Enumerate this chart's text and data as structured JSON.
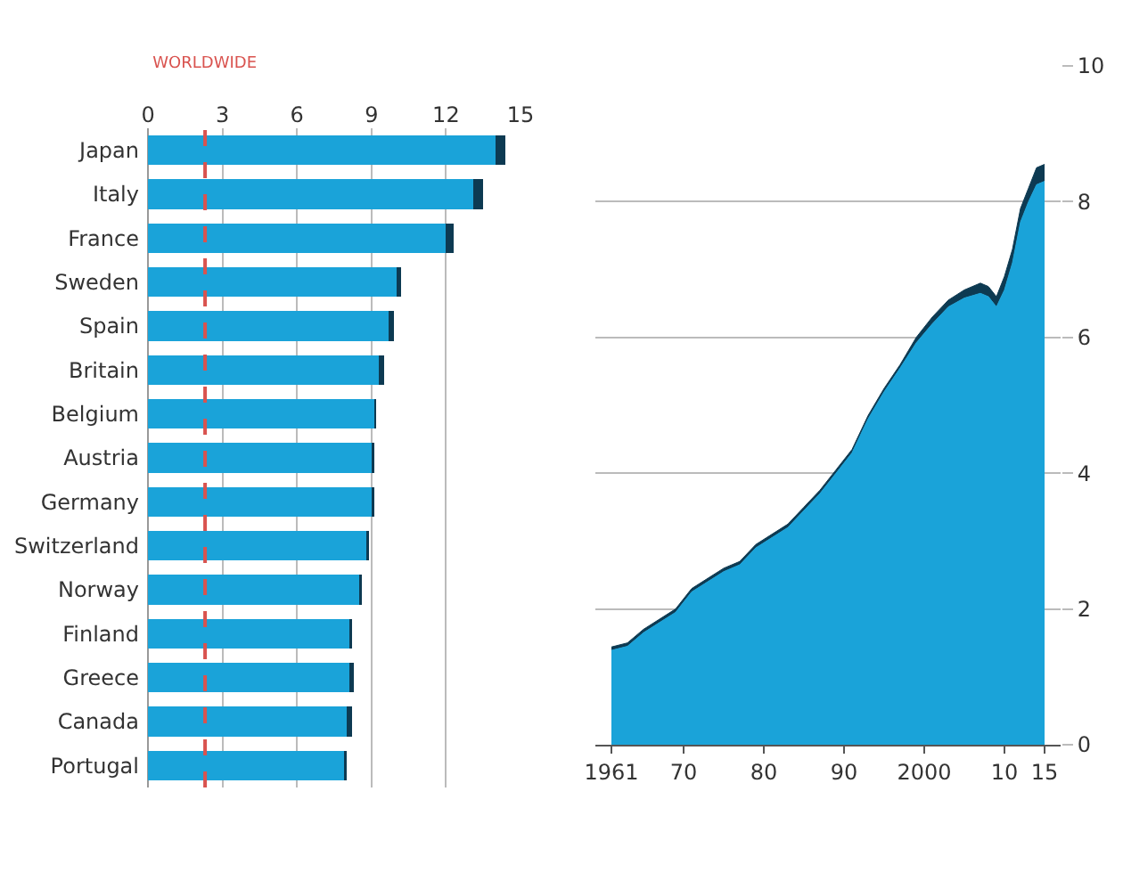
{
  "chart_data": [
    {
      "type": "bar",
      "orientation": "horizontal",
      "stacked": true,
      "grid": "x",
      "categories": [
        "Japan",
        "Italy",
        "France",
        "Sweden",
        "Spain",
        "Britain",
        "Belgium",
        "Austria",
        "Germany",
        "Switzerland",
        "Norway",
        "Finland",
        "Greece",
        "Canada",
        "Portugal"
      ],
      "series": [
        {
          "color": "#1aa3d9",
          "values": [
            14.0,
            13.1,
            12.0,
            10.0,
            9.7,
            9.3,
            9.1,
            9.0,
            9.0,
            8.8,
            8.5,
            8.1,
            8.1,
            8.0,
            7.9
          ]
        },
        {
          "color": "#0d3a52",
          "values": [
            0.4,
            0.4,
            0.3,
            0.2,
            0.2,
            0.2,
            0.1,
            0.1,
            0.1,
            0.1,
            0.1,
            0.1,
            0.2,
            0.2,
            0.1
          ]
        }
      ],
      "xlim": [
        0,
        15
      ],
      "xticks": [
        0,
        3,
        6,
        9,
        12,
        15
      ],
      "ref_lines": [
        {
          "axis": "x",
          "value": 2.3,
          "label": "WORLDWIDE",
          "color": "#d9534f",
          "line_style": "dashed"
        }
      ]
    },
    {
      "type": "area",
      "stacked": true,
      "grid": "y",
      "x": [
        1961,
        1963,
        1965,
        1967,
        1969,
        1971,
        1973,
        1975,
        1977,
        1979,
        1981,
        1983,
        1985,
        1987,
        1989,
        1991,
        1993,
        1995,
        1997,
        1999,
        2001,
        2003,
        2005,
        2007,
        2008,
        2009,
        2010,
        2011,
        2012,
        2013,
        2014,
        2015
      ],
      "series": [
        {
          "color": "#1aa3d9",
          "values": [
            1.39,
            1.45,
            1.65,
            1.8,
            1.95,
            2.25,
            2.4,
            2.55,
            2.65,
            2.9,
            3.05,
            3.2,
            3.45,
            3.7,
            4.0,
            4.3,
            4.8,
            5.2,
            5.55,
            5.92,
            6.2,
            6.45,
            6.58,
            6.65,
            6.6,
            6.45,
            6.7,
            7.1,
            7.7,
            8.0,
            8.25,
            8.3
          ]
        },
        {
          "color": "#0d3a52",
          "values": [
            0.05,
            0.05,
            0.05,
            0.05,
            0.05,
            0.05,
            0.05,
            0.05,
            0.05,
            0.05,
            0.05,
            0.05,
            0.05,
            0.05,
            0.05,
            0.05,
            0.05,
            0.05,
            0.05,
            0.08,
            0.1,
            0.1,
            0.12,
            0.15,
            0.15,
            0.15,
            0.2,
            0.2,
            0.2,
            0.2,
            0.25,
            0.25
          ]
        }
      ],
      "xlim": [
        1959,
        2017
      ],
      "xticks": [
        1961,
        {
          "value": 1970,
          "label": "70"
        },
        {
          "value": 1980,
          "label": "80"
        },
        {
          "value": 1990,
          "label": "90"
        },
        2000,
        {
          "value": 2010,
          "label": "10"
        },
        {
          "value": 2015,
          "label": "15"
        }
      ],
      "ylim": [
        0,
        10
      ],
      "yticks": [
        0,
        2,
        4,
        6,
        8,
        10
      ]
    }
  ]
}
